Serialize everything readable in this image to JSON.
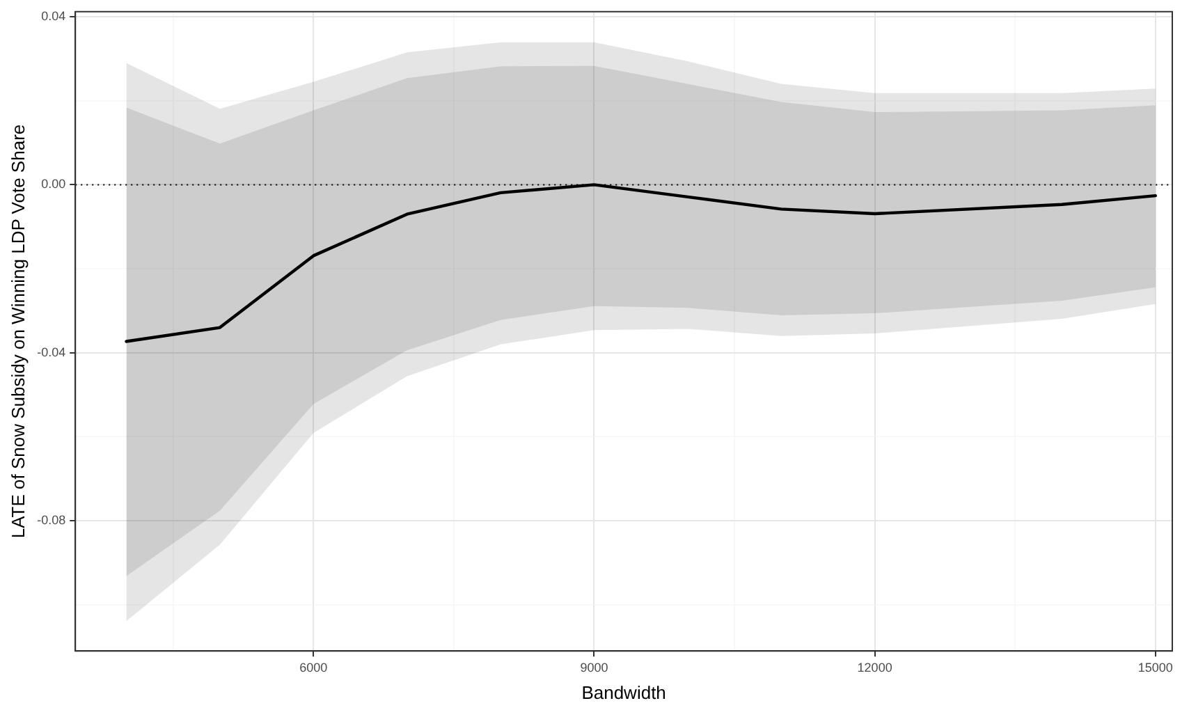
{
  "chart_data": {
    "type": "line",
    "xlabel": "Bandwidth",
    "ylabel": "LATE of Snow Subsidy on Winning LDP Vote Share",
    "x": [
      4000,
      5000,
      6000,
      7000,
      8000,
      9000,
      10000,
      11000,
      12000,
      14000,
      15000
    ],
    "series": [
      {
        "color": "#000000",
        "values": [
          -0.0373,
          -0.034,
          -0.0169,
          -0.007,
          -0.0019,
          0.0,
          -0.0029,
          -0.0058,
          -0.0069,
          -0.0047,
          -0.0026
        ],
        "lower": [
          -0.1039,
          -0.0857,
          -0.0591,
          -0.0456,
          -0.038,
          -0.0346,
          -0.0343,
          -0.036,
          -0.0354,
          -0.0319,
          -0.0284
        ],
        "upper": [
          0.029,
          0.0181,
          0.0245,
          0.0315,
          0.0339,
          0.0339,
          0.0294,
          0.024,
          0.0218,
          0.0218,
          0.0229
        ]
      },
      {
        "color": "#000000",
        "values": [
          null,
          null,
          null,
          null,
          null,
          null,
          null,
          null,
          null,
          null,
          null
        ],
        "lower": [
          -0.0932,
          -0.0776,
          -0.0522,
          -0.0394,
          -0.0322,
          -0.0289,
          -0.0293,
          -0.0311,
          -0.0306,
          -0.0276,
          -0.0244
        ],
        "upper": [
          0.0184,
          0.0098,
          0.0177,
          0.0254,
          0.0282,
          0.0283,
          0.024,
          0.0197,
          0.0173,
          0.0177,
          0.0189
        ]
      }
    ],
    "xlim": [
      3455,
      15180
    ],
    "xticks": [
      {
        "value": 4500,
        "label": null
      },
      6000,
      {
        "value": 7500,
        "label": null
      },
      9000,
      {
        "value": 10500,
        "label": null
      },
      12000,
      {
        "value": 13500,
        "label": null
      },
      15000
    ],
    "ylim": [
      -0.111,
      0.0412
    ],
    "yticks": [
      {
        "value": -0.1,
        "label": null
      },
      {
        "value": -0.08,
        "label": "-0.08"
      },
      {
        "value": -0.06,
        "label": null
      },
      {
        "value": -0.04,
        "label": "-0.04"
      },
      {
        "value": -0.02,
        "label": null
      },
      {
        "value": 0,
        "label": "0.00"
      },
      {
        "value": 0.02,
        "label": null
      },
      {
        "value": 0.04,
        "label": "0.04"
      }
    ],
    "ref_lines": [
      {
        "axis": "y",
        "value": 0,
        "line_style": "dotted",
        "color": "#000000"
      }
    ],
    "grid": true,
    "legend": false,
    "marker": "none",
    "line_style": "solid"
  }
}
